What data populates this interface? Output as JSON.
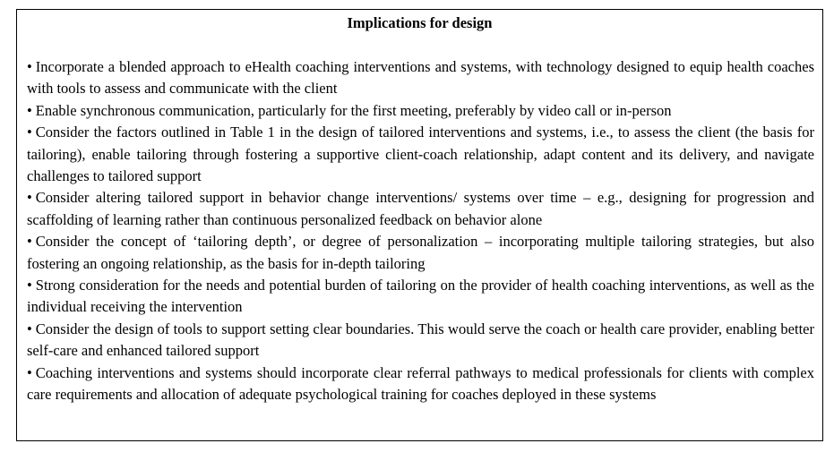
{
  "title": "Implications for design",
  "bullet_symbol": "•",
  "items": [
    "Incorporate a blended approach to eHealth coaching interventions and systems, with technology designed to equip health coaches with tools to assess and communicate with the client",
    "Enable synchronous communication, particularly for the first meeting, preferably by video call or in-person",
    "Consider the factors outlined in Table 1 in the design of tailored interventions and systems, i.e., to assess the client (the basis for tailoring), enable tailoring through fostering a supportive client-coach relationship, adapt content and its delivery, and navigate challenges to tailored support",
    "Consider altering tailored support in behavior change interventions/ systems over time – e.g., designing for progression and scaffolding of learning rather than continuous personalized feedback on behavior alone",
    "Consider the concept of ‘tailoring depth’, or degree of personalization – incorporating multiple tailoring strategies, but also fostering an ongoing relationship, as the basis for in-depth tailoring",
    "Strong consideration for the needs and potential burden of tailoring on the provider of health coaching interventions, as well as the individual receiving the intervention",
    "Consider the design of tools to support setting clear boundaries. This would serve the coach or health care provider, enabling better self-care and enhanced tailored support",
    "Coaching interventions and systems should incorporate clear referral pathways to medical professionals for clients with complex care requirements and allocation of adequate psychological training for coaches deployed in these systems"
  ]
}
